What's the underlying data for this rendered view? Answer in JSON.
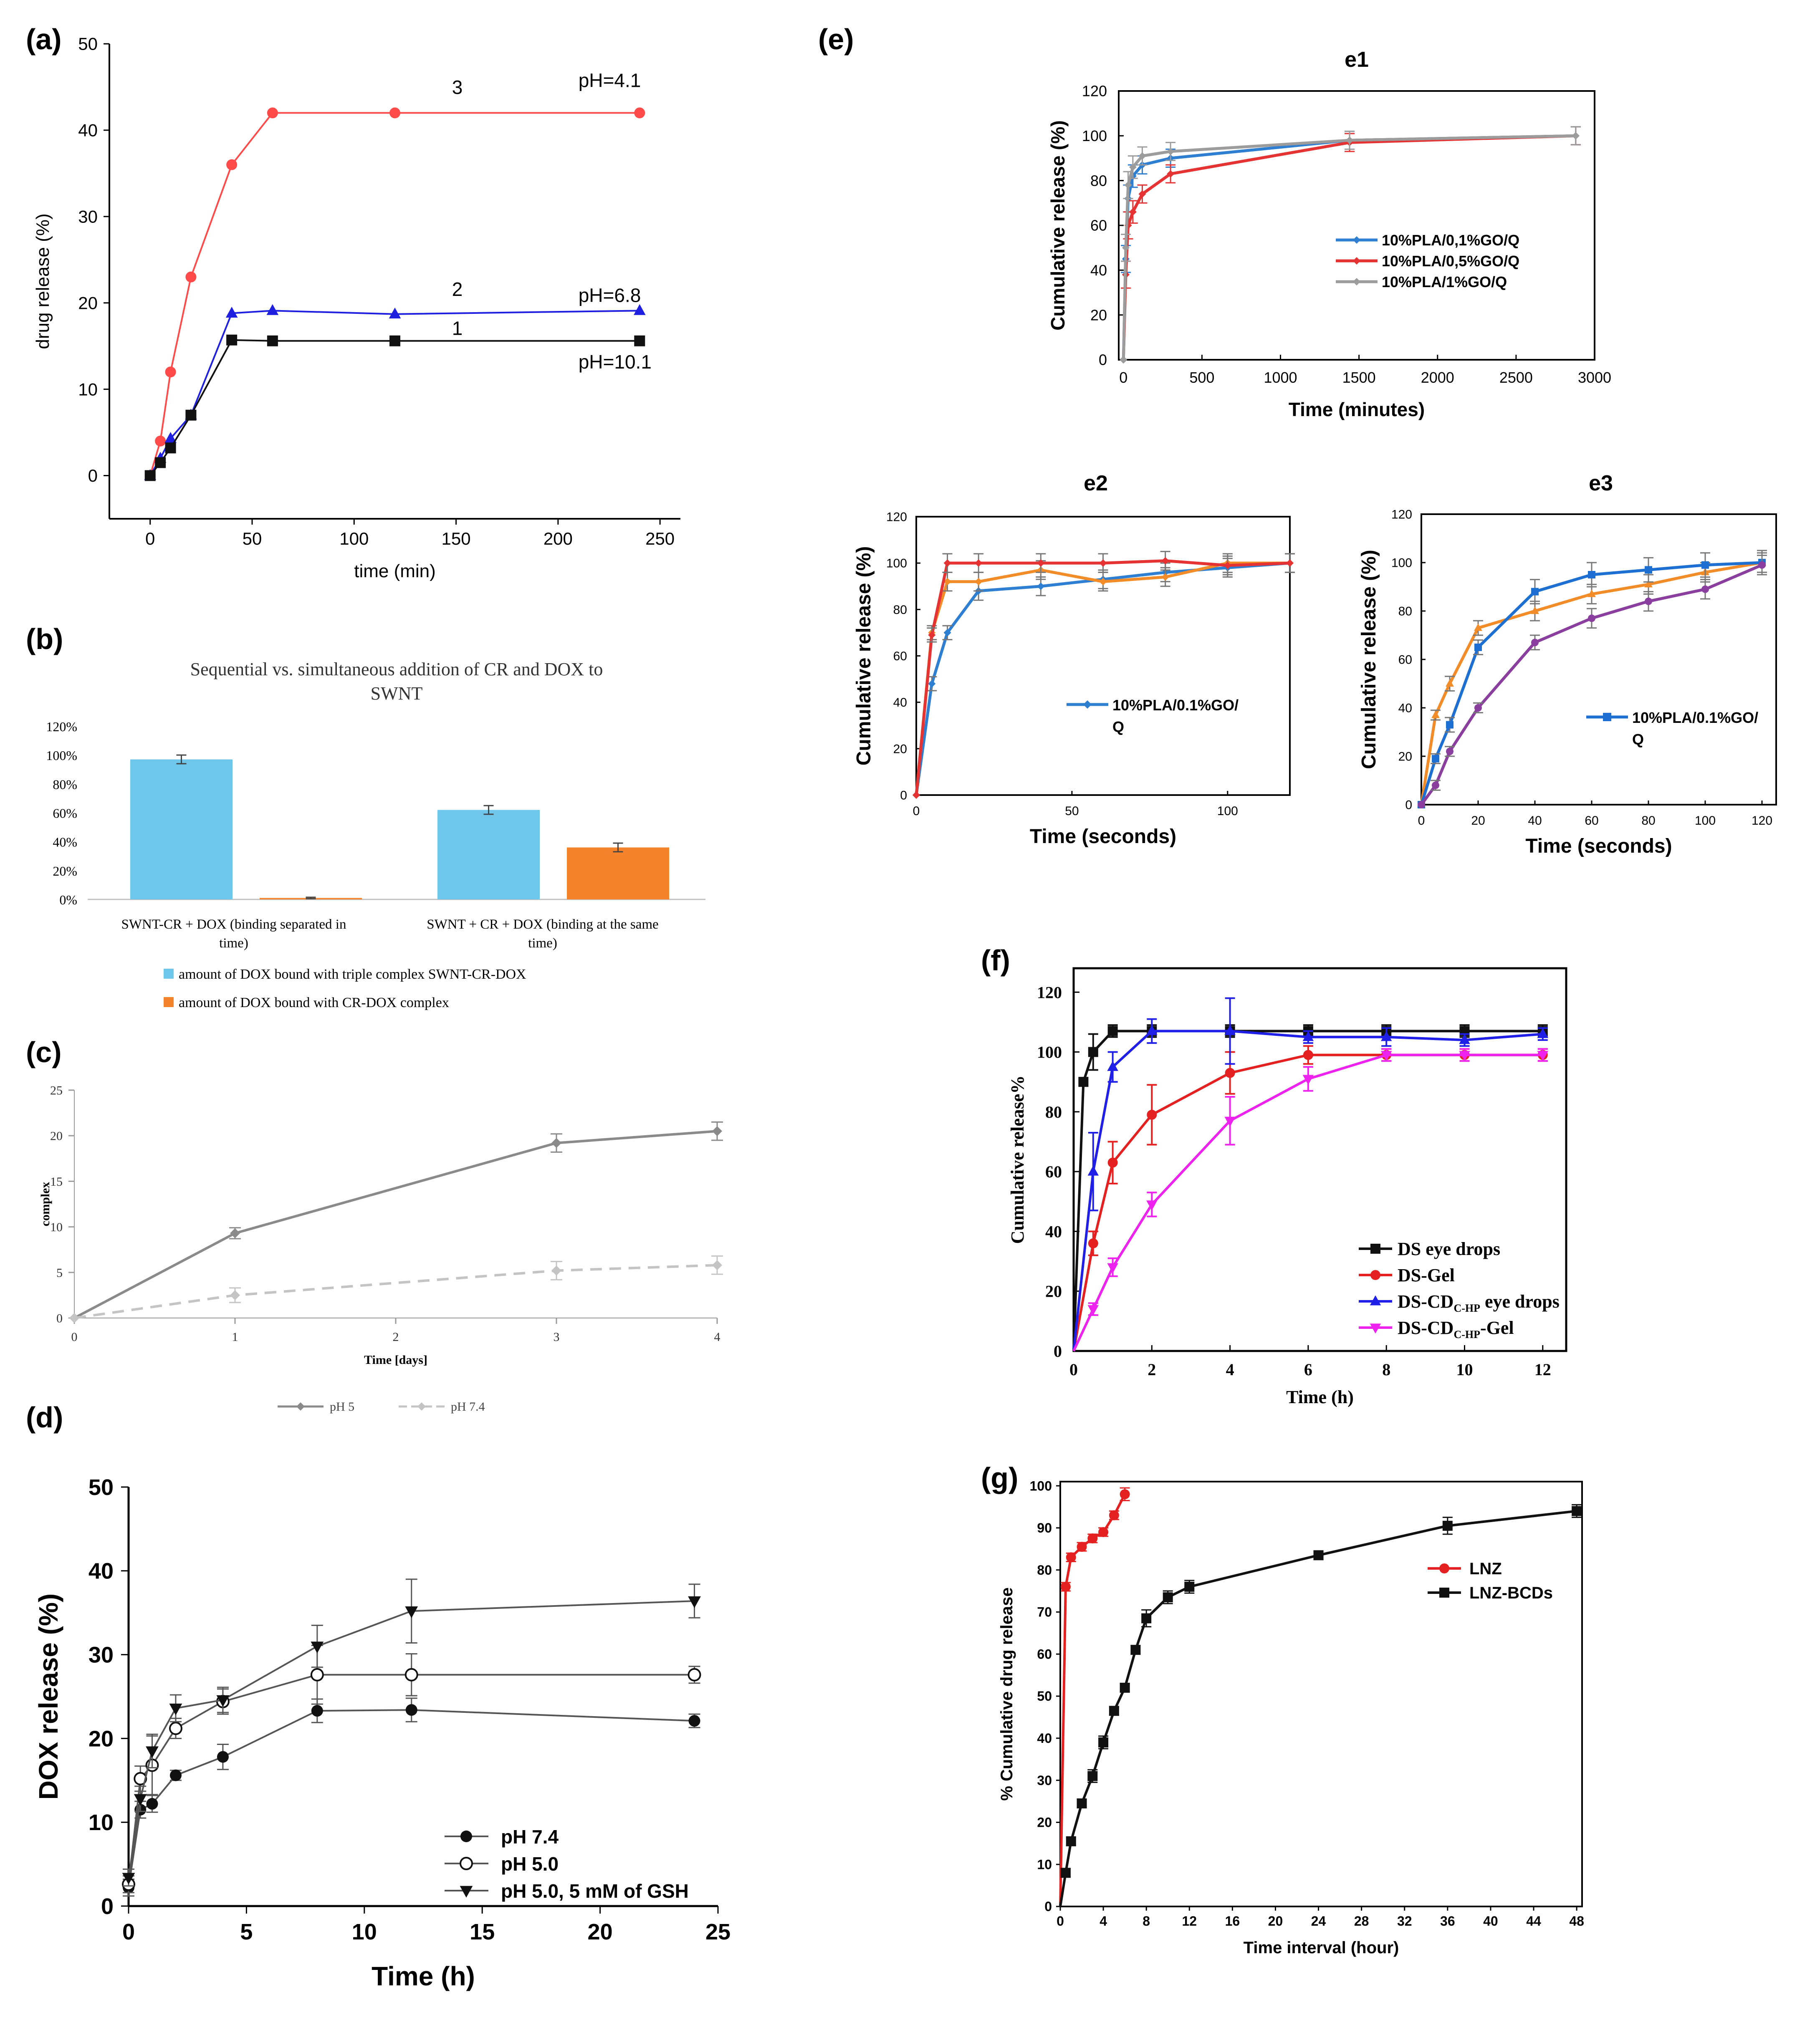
{
  "chart_data": [
    {
      "panel": "(a)",
      "type": "line",
      "xlabel": "time (min)",
      "ylabel": "drug release (%)",
      "xlim": [
        -20,
        260
      ],
      "ylim": [
        -5,
        50
      ],
      "xticks": [
        0,
        50,
        100,
        150,
        200,
        250
      ],
      "yticks": [
        0,
        10,
        20,
        30,
        40,
        50
      ],
      "series": [
        {
          "name": "3",
          "color": "#ff4a4a",
          "marker": "circle",
          "x": [
            0,
            5,
            10,
            20,
            40,
            60,
            120,
            240
          ],
          "y": [
            0,
            4,
            12,
            23,
            36,
            42,
            42,
            42
          ]
        },
        {
          "name": "2",
          "color": "#1f1fe0",
          "marker": "triangle",
          "x": [
            0,
            5,
            10,
            20,
            40,
            60,
            120,
            240
          ],
          "y": [
            0,
            2,
            4.3,
            7,
            18.8,
            19.1,
            18.7,
            19.1
          ]
        },
        {
          "name": "1",
          "color": "#111111",
          "marker": "square",
          "x": [
            0,
            5,
            10,
            20,
            40,
            60,
            120,
            240
          ],
          "y": [
            0,
            1.5,
            3.2,
            7,
            15.7,
            15.6,
            15.6,
            15.6
          ]
        }
      ],
      "annotations": [
        {
          "text": "3",
          "x": 148,
          "y": 44.2
        },
        {
          "text": "pH=4.1",
          "x": 210,
          "y": 45
        },
        {
          "text": "2",
          "x": 148,
          "y": 20.8
        },
        {
          "text": "pH=6.8",
          "x": 210,
          "y": 20.1
        },
        {
          "text": "1",
          "x": 148,
          "y": 16.3
        },
        {
          "text": "pH=10.1",
          "x": 210,
          "y": 12.4
        }
      ]
    },
    {
      "panel": "(b)",
      "type": "bar",
      "title": "Sequential vs. simultaneous addition of CR and DOX to SWNT",
      "categories": [
        "SWNT-CR + DOX (binding separated in time)",
        "SWNT + CR + DOX (binding at the same time)"
      ],
      "ylim": [
        0,
        120
      ],
      "yticks": [
        "0%",
        "20%",
        "40%",
        "60%",
        "80%",
        "100%",
        "120%"
      ],
      "series": [
        {
          "name": "amount of DOX bound with triple complex SWNT-CR-DOX",
          "color": "#6ec6ea",
          "values": [
            97,
            62
          ],
          "errors": [
            3,
            3
          ]
        },
        {
          "name": "amount of DOX bound with CR-DOX complex",
          "color": "#f5832b",
          "values": [
            1,
            36
          ],
          "errors": [
            0.5,
            3
          ]
        }
      ]
    },
    {
      "panel": "(c)",
      "type": "line",
      "xlabel": "Time [days]",
      "ylabel": "complex",
      "xlim": [
        0,
        4
      ],
      "ylim": [
        0,
        25
      ],
      "xticks": [
        0,
        1,
        2,
        3,
        4
      ],
      "yticks": [
        0,
        5,
        10,
        15,
        20,
        25
      ],
      "series": [
        {
          "name": "pH 5",
          "color": "#8a8a8a",
          "dash": false,
          "x": [
            0,
            1,
            3,
            4
          ],
          "y": [
            0,
            9.3,
            19.2,
            20.5
          ],
          "errors": [
            0,
            0.6,
            1.0,
            1.0
          ]
        },
        {
          "name": "pH 7.4",
          "color": "#c4c4c4",
          "dash": true,
          "x": [
            0,
            1,
            3,
            4
          ],
          "y": [
            0,
            2.5,
            5.2,
            5.8
          ],
          "errors": [
            0,
            0.8,
            1.0,
            1.0
          ]
        }
      ]
    },
    {
      "panel": "(d)",
      "type": "line",
      "xlabel": "Time (h)",
      "ylabel": "DOX release (%)",
      "xlim": [
        0,
        25
      ],
      "ylim": [
        0,
        50
      ],
      "xticks": [
        0,
        5,
        10,
        15,
        20,
        25
      ],
      "yticks": [
        0,
        10,
        20,
        30,
        40,
        50
      ],
      "series": [
        {
          "name": "pH 7.4",
          "color": "#333333",
          "marker": "circle-filled",
          "x": [
            0,
            0.5,
            1,
            2,
            4,
            8,
            12,
            24
          ],
          "y": [
            2.2,
            11.5,
            12.2,
            15.6,
            17.8,
            23.3,
            23.4,
            22.1
          ],
          "errors": [
            1,
            1,
            1,
            0.6,
            1.5,
            1.4,
            1.4,
            0.8
          ]
        },
        {
          "name": "pH 5.0",
          "color": "#333333",
          "marker": "circle-open",
          "x": [
            0,
            0.5,
            1,
            2,
            4,
            8,
            12,
            24
          ],
          "y": [
            2.6,
            15.2,
            16.8,
            21.2,
            24.4,
            27.6,
            27.6,
            27.6
          ],
          "errors": [
            1,
            1.5,
            3.5,
            1.2,
            1.5,
            3.5,
            2.5,
            1
          ]
        },
        {
          "name": "pH 5.0, 5 mM of GSH",
          "color": "#333333",
          "marker": "triangle-down",
          "x": [
            0,
            0.5,
            1,
            2,
            4,
            8,
            12,
            24
          ],
          "y": [
            3.4,
            12.8,
            18.5,
            23.6,
            24.6,
            31.0,
            35.2,
            36.4
          ],
          "errors": [
            1,
            1.5,
            2,
            1.6,
            1.5,
            2.5,
            3.8,
            2
          ]
        }
      ]
    },
    {
      "panel": "(e)",
      "subpanel": "e1",
      "type": "line",
      "xlabel": "Time (minutes)",
      "ylabel": "Cumulative release (%)",
      "xlim": [
        -30,
        3000
      ],
      "ylim": [
        0,
        120
      ],
      "xticks": [
        0,
        500,
        1000,
        1500,
        2000,
        2500,
        3000
      ],
      "yticks": [
        0,
        20,
        40,
        60,
        80,
        100,
        120
      ],
      "series": [
        {
          "name": "10%PLA/0,1%GO/Q",
          "color": "#2e7fd1",
          "x": [
            0,
            15,
            30,
            60,
            120,
            300,
            1440,
            2880
          ],
          "y": [
            0,
            45,
            72,
            82,
            87,
            90,
            98,
            100
          ],
          "errors": [
            0,
            6,
            6,
            5,
            4,
            4,
            4,
            4
          ]
        },
        {
          "name": "10%PLA/0,5%GO/Q",
          "color": "#e53232",
          "x": [
            0,
            15,
            30,
            60,
            120,
            300,
            1440,
            2880
          ],
          "y": [
            0,
            38,
            60,
            66,
            74,
            83,
            97,
            100
          ],
          "errors": [
            0,
            6,
            6,
            5,
            4,
            4,
            4,
            4
          ]
        },
        {
          "name": "10%PLA/1%GO/Q",
          "color": "#9c9c9c",
          "x": [
            0,
            15,
            30,
            60,
            120,
            300,
            1440,
            2880
          ],
          "y": [
            0,
            50,
            78,
            86,
            91,
            93,
            98,
            100
          ],
          "errors": [
            0,
            6,
            6,
            5,
            4,
            4,
            4,
            4
          ]
        }
      ]
    },
    {
      "panel": "(e)",
      "subpanel": "e2",
      "type": "line",
      "xlabel": "Time (seconds)",
      "ylabel": "Cumulative release (%)",
      "xlim": [
        0,
        120
      ],
      "ylim": [
        0,
        120
      ],
      "xticks": [
        0,
        50,
        100
      ],
      "yticks": [
        0,
        20,
        40,
        60,
        80,
        100,
        120
      ],
      "legend": [
        "10%PLA/0.1%GO/",
        "Q"
      ],
      "series": [
        {
          "name": "blue",
          "color": "#2e7fd1",
          "x": [
            0,
            5,
            10,
            20,
            40,
            60,
            80,
            100,
            120
          ],
          "y": [
            0,
            48,
            70,
            88,
            90,
            93,
            96,
            98,
            100
          ],
          "errors": [
            0,
            3,
            3,
            4,
            4,
            4,
            4,
            4,
            4
          ]
        },
        {
          "name": "orange",
          "color": "#f28c28",
          "x": [
            0,
            5,
            10,
            20,
            40,
            60,
            80,
            100,
            120
          ],
          "y": [
            0,
            70,
            92,
            92,
            97,
            92,
            94,
            100,
            100
          ],
          "errors": [
            0,
            3,
            4,
            4,
            4,
            4,
            4,
            4,
            4
          ]
        },
        {
          "name": "red",
          "color": "#e53232",
          "x": [
            0,
            5,
            10,
            20,
            40,
            60,
            80,
            100,
            120
          ],
          "y": [
            0,
            69,
            100,
            100,
            100,
            100,
            101,
            99,
            100
          ],
          "errors": [
            0,
            3,
            4,
            4,
            4,
            4,
            4,
            4,
            4
          ]
        }
      ]
    },
    {
      "panel": "(e)",
      "subpanel": "e3",
      "type": "line",
      "xlabel": "Time (seconds)",
      "ylabel": "Cumulative release (%)",
      "xlim": [
        0,
        125
      ],
      "ylim": [
        0,
        120
      ],
      "xticks": [
        0,
        20,
        40,
        60,
        80,
        100,
        120
      ],
      "yticks": [
        0,
        20,
        40,
        60,
        80,
        100,
        120
      ],
      "legend": [
        "10%PLA/0.1%GO/",
        "Q"
      ],
      "series": [
        {
          "name": "orange",
          "color": "#f28c28",
          "x": [
            0,
            5,
            10,
            20,
            40,
            60,
            80,
            100,
            120
          ],
          "y": [
            0,
            37,
            50,
            73,
            80,
            87,
            91,
            96,
            100
          ],
          "errors": [
            0,
            2,
            3,
            3,
            4,
            4,
            4,
            4,
            4
          ]
        },
        {
          "name": "blue",
          "color": "#1d6fd1",
          "x": [
            0,
            5,
            10,
            20,
            40,
            60,
            80,
            100,
            120
          ],
          "y": [
            0,
            19,
            33,
            65,
            88,
            95,
            97,
            99,
            100
          ],
          "errors": [
            0,
            2,
            3,
            3,
            5,
            5,
            5,
            5,
            5
          ]
        },
        {
          "name": "purple",
          "color": "#8a3f9e",
          "x": [
            0,
            5,
            10,
            20,
            40,
            60,
            80,
            100,
            120
          ],
          "y": [
            0,
            8,
            22,
            40,
            67,
            77,
            84,
            89,
            99
          ],
          "errors": [
            0,
            2,
            2,
            2,
            3,
            4,
            4,
            4,
            4
          ]
        }
      ]
    },
    {
      "panel": "(f)",
      "type": "line",
      "xlabel": "Time (h)",
      "ylabel": "Cumulative release%",
      "xlim": [
        0,
        12.6
      ],
      "ylim": [
        0,
        128
      ],
      "xticks": [
        0,
        2,
        4,
        6,
        8,
        10,
        12
      ],
      "yticks": [
        0,
        20,
        40,
        60,
        80,
        100,
        120
      ],
      "series": [
        {
          "name": "DS eye drops",
          "color": "#111111",
          "marker": "square",
          "x": [
            0,
            0.25,
            0.5,
            1,
            2,
            4,
            6,
            8,
            10,
            12
          ],
          "y": [
            0,
            90,
            100,
            107,
            107,
            107,
            107,
            107,
            107,
            107
          ],
          "errors": [
            0,
            0,
            6,
            2,
            2,
            2,
            2,
            2,
            2,
            2
          ]
        },
        {
          "name": "DS-Gel",
          "color": "#e52020",
          "marker": "circle",
          "x": [
            0,
            0.5,
            1,
            2,
            4,
            6,
            8,
            10,
            12
          ],
          "y": [
            0,
            36,
            63,
            79,
            93,
            99,
            99,
            99,
            99
          ],
          "errors": [
            0,
            4,
            7,
            10,
            7,
            3,
            2,
            2,
            2
          ]
        },
        {
          "name": "DS-CD eye drops",
          "color": "#1f1fe8",
          "marker": "triangle",
          "x": [
            0,
            0.5,
            1,
            2,
            4,
            6,
            8,
            10,
            12
          ],
          "y": [
            0,
            60,
            95,
            107,
            107,
            105,
            105,
            104,
            106
          ],
          "errors": [
            0,
            13,
            5,
            4,
            11,
            2,
            3,
            2,
            2
          ]
        },
        {
          "name": "DS-CD-Gel",
          "color": "#ee22ee",
          "marker": "triangle-down",
          "x": [
            0,
            0.5,
            1,
            2,
            4,
            6,
            8,
            10,
            12
          ],
          "y": [
            0,
            14,
            28,
            49,
            77,
            91,
            99,
            99,
            99
          ],
          "errors": [
            0,
            2,
            3,
            4,
            8,
            4,
            2,
            2,
            2
          ]
        }
      ]
    },
    {
      "panel": "(g)",
      "type": "line",
      "xlabel": "Time interval (hour)",
      "ylabel": "% Cumulative drug release",
      "xlim": [
        0,
        48.5
      ],
      "ylim": [
        0,
        101
      ],
      "xticks": [
        0,
        4,
        8,
        12,
        16,
        20,
        24,
        28,
        32,
        36,
        40,
        44,
        48
      ],
      "yticks": [
        0,
        10,
        20,
        30,
        40,
        50,
        60,
        70,
        80,
        90,
        100
      ],
      "series": [
        {
          "name": "LNZ",
          "color": "#e52020",
          "marker": "circle",
          "x": [
            0,
            0.5,
            1,
            2,
            3,
            4,
            5,
            6
          ],
          "y": [
            0,
            76,
            83,
            85.5,
            87.5,
            89,
            93,
            98
          ],
          "errors": [
            0,
            1,
            1,
            1,
            1,
            1,
            1,
            1.5
          ]
        },
        {
          "name": "LNZ-BCDs",
          "color": "#111111",
          "marker": "square",
          "x": [
            0,
            0.5,
            1,
            2,
            3,
            4,
            5,
            6,
            7,
            8,
            10,
            12,
            24,
            36,
            48
          ],
          "y": [
            0,
            8,
            15.5,
            24.5,
            31,
            39,
            46.5,
            52,
            61,
            68.5,
            73.5,
            76,
            83.5,
            90.5,
            94
          ],
          "errors": [
            0,
            1,
            1,
            1,
            1.5,
            1.5,
            1,
            1,
            1,
            2,
            1.5,
            1.5,
            1,
            2,
            1.5
          ]
        }
      ]
    }
  ],
  "panel_labels": {
    "a": "(a)",
    "b": "(b)",
    "c": "(c)",
    "d": "(d)",
    "e": "(e)",
    "f": "(f)",
    "g": "(g)"
  },
  "subtitles": {
    "e1": "e1",
    "e2": "e2",
    "e3": "e3"
  },
  "b_title_lines": [
    "Sequential vs. simultaneous addition of CR and DOX to",
    "SWNT"
  ],
  "b_category_lines": [
    [
      "SWNT-CR + DOX (binding separated in",
      "time)"
    ],
    [
      "SWNT + CR + DOX (binding at the same",
      "time)"
    ]
  ],
  "f_legend": [
    {
      "main": "DS eye drops",
      "sub": "",
      "tail": ""
    },
    {
      "main": "DS-Gel",
      "sub": "",
      "tail": ""
    },
    {
      "main": "DS-CD",
      "sub": "C-HP",
      "tail": " eye drops"
    },
    {
      "main": "DS-CD",
      "sub": "C-HP",
      "tail": "-Gel"
    }
  ]
}
